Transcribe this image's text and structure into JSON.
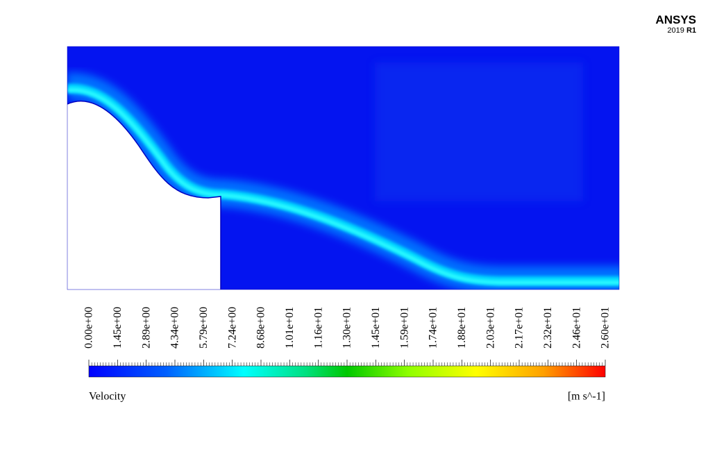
{
  "logo": {
    "brand": "ANSYS",
    "year": "2019",
    "release": "R1"
  },
  "colorbar": {
    "ticks": [
      "0.00e+00",
      "1.45e+00",
      "2.89e+00",
      "4.34e+00",
      "5.79e+00",
      "7.24e+00",
      "8.68e+00",
      "1.01e+01",
      "1.16e+01",
      "1.30e+01",
      "1.45e+01",
      "1.59e+01",
      "1.74e+01",
      "1.88e+01",
      "2.03e+01",
      "2.17e+01",
      "2.32e+01",
      "2.46e+01",
      "2.60e+01"
    ],
    "variable": "Velocity",
    "units": "[m s^-1]"
  }
}
